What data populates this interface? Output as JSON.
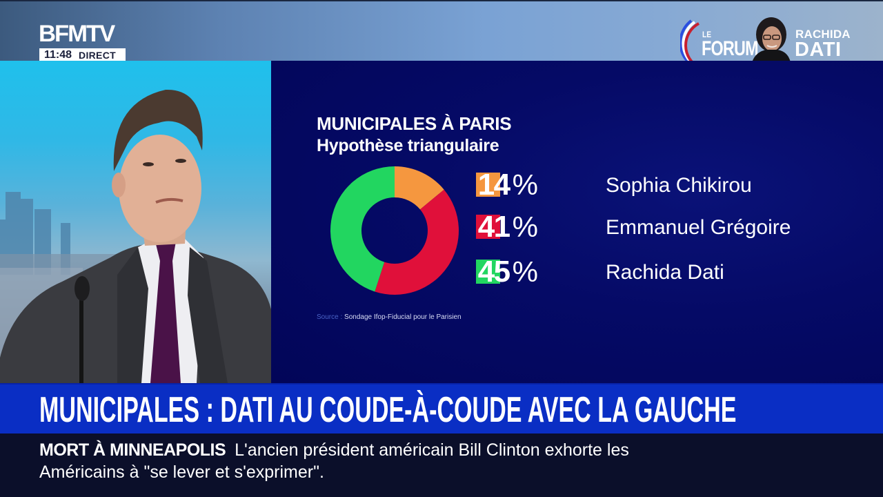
{
  "header": {
    "channel_logo": "BFMTV",
    "clock": "11:48",
    "live_label": "DIRECT",
    "show": {
      "prefix": "LE",
      "name": "FORUM"
    },
    "guest": {
      "first_name": "RACHIDA",
      "last_name": "DATI"
    }
  },
  "graphic": {
    "title": "MUNICIPALES À PARIS",
    "subtitle": "Hypothèse triangulaire",
    "source_label": "Source :",
    "source_text": "Sondage Ifop-Fiducial pour le Parisien",
    "legend": [
      {
        "value": "14",
        "pct": "%",
        "name": "Sophia Chikirou",
        "color": "#f5973f"
      },
      {
        "value": "41",
        "pct": "%",
        "name": "Emmanuel Grégoire",
        "color": "#e0103a"
      },
      {
        "value": "45",
        "pct": "%",
        "name": "Rachida Dati",
        "color": "#22d660"
      }
    ]
  },
  "chart_data": {
    "type": "pie",
    "variant": "donut",
    "title": "MUNICIPALES À PARIS",
    "subtitle": "Hypothèse triangulaire",
    "categories": [
      "Sophia Chikirou",
      "Emmanuel Grégoire",
      "Rachida Dati"
    ],
    "values": [
      14,
      41,
      45
    ],
    "unit": "%",
    "colors": [
      "#f5973f",
      "#e0103a",
      "#22d660"
    ],
    "start_angle": "12 o'clock, clockwise",
    "legend_position": "right",
    "source": "Sondage Ifop-Fiducial pour le Parisien"
  },
  "headline": "MUNICIPALES : DATI AU COUDE-À-COUDE AVEC LA GAUCHE",
  "ticker": {
    "tag": "MORT À MINNEAPOLIS",
    "text": "L'ancien président américain Bill Clinton exhorte les Américains à \"se lever et s'exprimer\"."
  },
  "colors": {
    "graphic_bg": "#03065e",
    "headline_bg": "#0a2ec4",
    "ticker_bg": "#0b0f2a"
  }
}
